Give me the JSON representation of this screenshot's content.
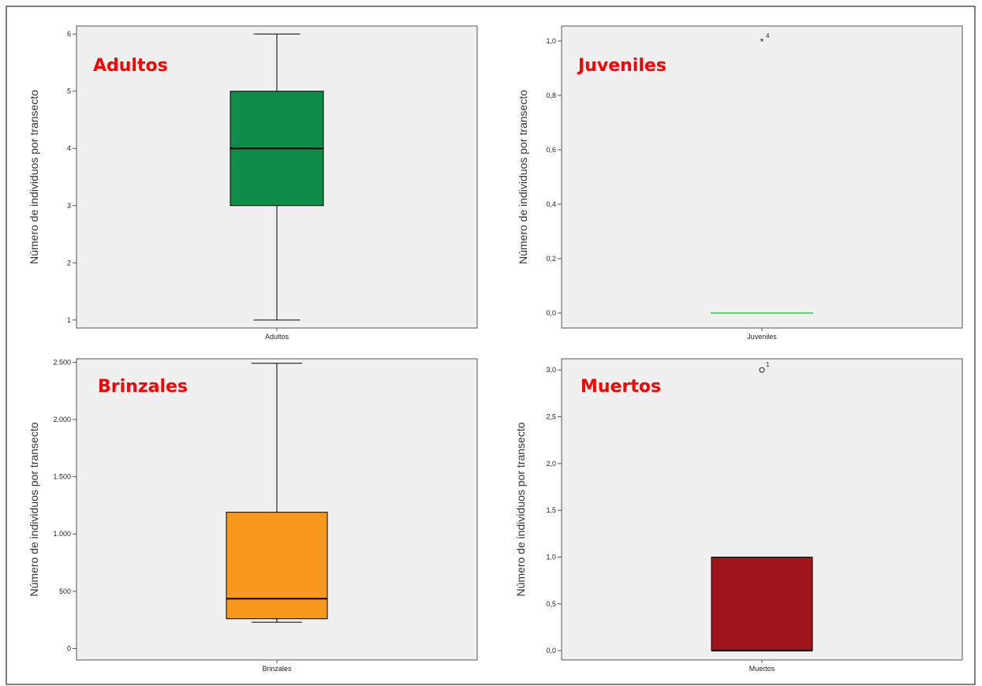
{
  "colors": {
    "background": "#ffffff",
    "plot_bg": "#f0f0f0",
    "axis": "#555555",
    "title": "#ff0000"
  },
  "chart_data": [
    {
      "type": "box",
      "title": "Adultos",
      "ylabel": "Número de individuos por transecto",
      "category": "Adultos",
      "fill": "#0f8b4a",
      "ylim": [
        0.86,
        6.14
      ],
      "yticks": [
        1,
        2,
        3,
        4,
        5,
        6
      ],
      "ytick_labels": [
        "1",
        "2",
        "3",
        "4",
        "5",
        "6"
      ],
      "whisker_low": 1,
      "q1": 3,
      "median": 4,
      "q3": 5,
      "whisker_high": 6,
      "outliers": []
    },
    {
      "type": "box",
      "title": "Juveniles",
      "ylabel": "Número de individuos por transecto",
      "category": "Juveniles",
      "fill": "#33cc44",
      "ylim": [
        -0.055,
        1.055
      ],
      "yticks": [
        0,
        0.2,
        0.4,
        0.6,
        0.8,
        1.0
      ],
      "ytick_labels": [
        "0,0",
        "0,2",
        "0,4",
        "0,6",
        "0,8",
        "1,0"
      ],
      "whisker_low": 0,
      "q1": 0,
      "median": 0,
      "q3": 0,
      "whisker_high": 0,
      "outliers": [
        {
          "value": 1.0,
          "marker": "star",
          "label": "4"
        }
      ]
    },
    {
      "type": "box",
      "title": "Brinzales",
      "ylabel": "Número de individuos por transecto",
      "category": "Brinzales",
      "fill": "#f7981d",
      "ylim": [
        -100,
        2530
      ],
      "yticks": [
        0,
        500,
        1000,
        1500,
        2000,
        2500
      ],
      "ytick_labels": [
        "0",
        "500",
        "1.000",
        "1.500",
        "2.000",
        "2.500"
      ],
      "whisker_low": 230,
      "q1": 260,
      "median": 435,
      "q3": 1190,
      "whisker_high": 2490,
      "outliers": []
    },
    {
      "type": "box",
      "title": "Muertos",
      "ylabel": "Número de individuos por transecto",
      "category": "Muertos",
      "fill": "#a0151b",
      "ylim": [
        -0.1,
        3.12
      ],
      "yticks": [
        0,
        0.5,
        1.0,
        1.5,
        2.0,
        2.5,
        3.0
      ],
      "ytick_labels": [
        "0,0",
        "0,5",
        "1,0",
        "1,5",
        "2,0",
        "2,5",
        "3,0"
      ],
      "whisker_low": 0,
      "q1": 0,
      "median": 0,
      "q3": 1,
      "whisker_high": 1,
      "outliers": [
        {
          "value": 3.0,
          "marker": "circle",
          "label": "1"
        }
      ]
    }
  ]
}
